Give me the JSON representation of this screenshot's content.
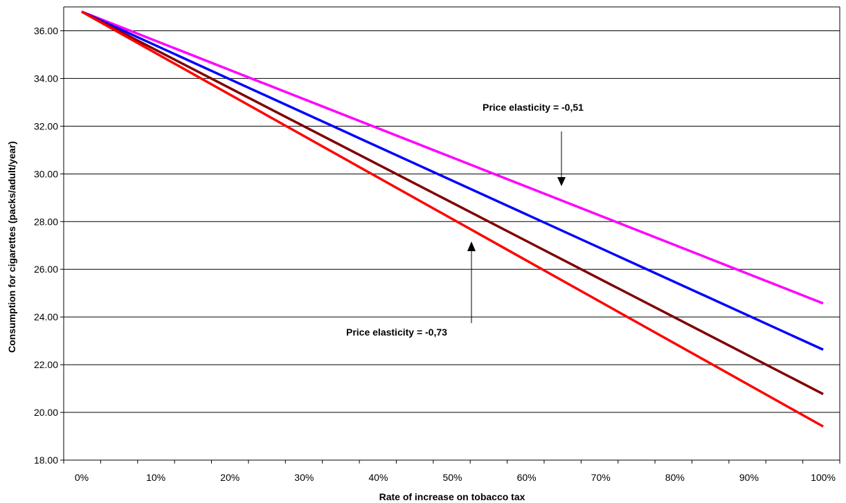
{
  "chart_data": {
    "type": "line",
    "xlabel": "Rate of increase on tobacco tax",
    "ylabel": "Consumption for cigarettes (packs/adult/year)",
    "ylim": [
      18,
      37
    ],
    "x_ticks": [
      "0%",
      "10%",
      "20%",
      "30%",
      "40%",
      "50%",
      "60%",
      "70%",
      "80%",
      "90%",
      "100%"
    ],
    "y_ticks": [
      "18.00",
      "20.00",
      "22.00",
      "24.00",
      "26.00",
      "28.00",
      "30.00",
      "32.00",
      "34.00",
      "36.00"
    ],
    "y_tick_values": [
      18,
      20,
      22,
      24,
      26,
      28,
      30,
      32,
      34,
      36
    ],
    "grid": "horizontal",
    "x": [
      0,
      100
    ],
    "series": [
      {
        "color": "#ff00ff",
        "values": [
          36.8,
          24.57
        ]
      },
      {
        "color": "#0000ff",
        "values": [
          36.8,
          22.63
        ]
      },
      {
        "color": "#800000",
        "values": [
          36.8,
          20.77
        ]
      },
      {
        "color": "#ff0000",
        "values": [
          36.8,
          19.41
        ]
      }
    ],
    "annotations": [
      {
        "text": "Price elasticity = -0,51",
        "arrow": "down"
      },
      {
        "text": "Price elasticity  = -0,73",
        "arrow": "up"
      }
    ]
  }
}
